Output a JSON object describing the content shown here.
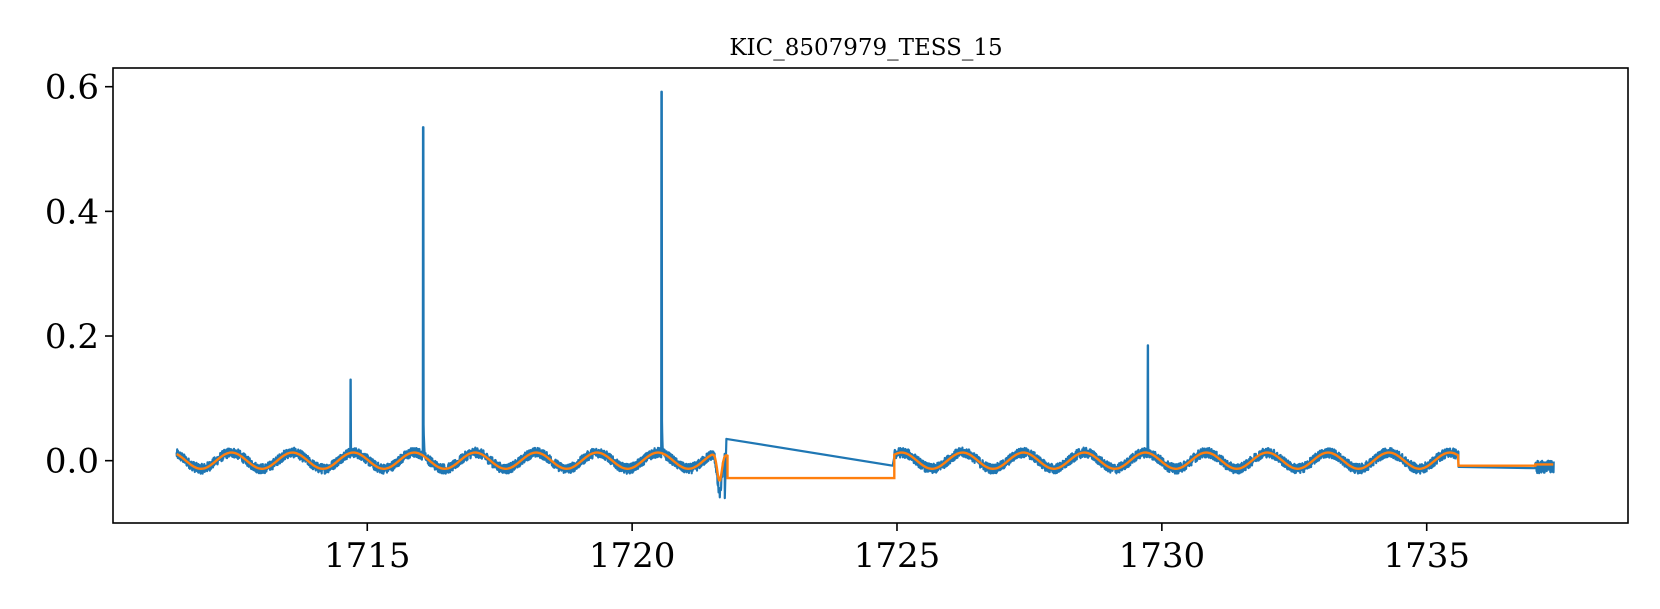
{
  "chart_data": {
    "type": "line",
    "title": "KIC_8507979_TESS_15",
    "xlabel": "",
    "ylabel": "",
    "xlim": [
      1710.2,
      1738.8
    ],
    "ylim": [
      -0.1,
      0.63
    ],
    "grid": false,
    "x_ticks": [
      1715,
      1720,
      1725,
      1730,
      1735
    ],
    "y_ticks": [
      0.0,
      0.2,
      0.4,
      0.6
    ],
    "x_tick_labels": [
      "1715",
      "1720",
      "1725",
      "1730",
      "1735"
    ],
    "y_tick_labels": [
      "0.0",
      "0.2",
      "0.4",
      "0.6"
    ],
    "colors": {
      "flux": "#1f77b4",
      "trend": "#ff7f0e"
    },
    "series": [
      {
        "key": "flux",
        "description": "raw flux light curve (dense sampled, with flare spikes)",
        "sampling": {
          "segments": [
            [
              1711.4,
              1721.75
            ],
            [
              1724.95,
              1735.6
            ],
            [
              1737.05,
              1737.4
            ]
          ],
          "step": 0.004
        },
        "modulation": {
          "period": 1.15,
          "amplitude": 0.013,
          "phase_ref": 1712.15,
          "noise": 0.008
        },
        "gap_segment_points": [
          [
            1721.75,
            -0.06
          ],
          [
            1721.78,
            0.035
          ],
          [
            1724.92,
            -0.008
          ]
        ],
        "flares": [
          {
            "x": 1714.68,
            "peak": 0.13
          },
          {
            "x": 1716.05,
            "peak": 0.535
          },
          {
            "x": 1720.55,
            "peak": 0.592
          },
          {
            "x": 1729.73,
            "peak": 0.185
          }
        ],
        "dip": {
          "x": 1721.65,
          "depth": -0.065
        }
      },
      {
        "key": "trend",
        "description": "smoothed trend fit",
        "modulation": {
          "period": 1.15,
          "amplitude": 0.013,
          "phase_ref": 1712.15
        },
        "flat_segments": [
          {
            "x": [
              1721.8,
              1724.95
            ],
            "y": -0.028
          },
          {
            "x": [
              1735.6,
              1737.05
            ],
            "y": -0.008
          }
        ]
      }
    ]
  }
}
